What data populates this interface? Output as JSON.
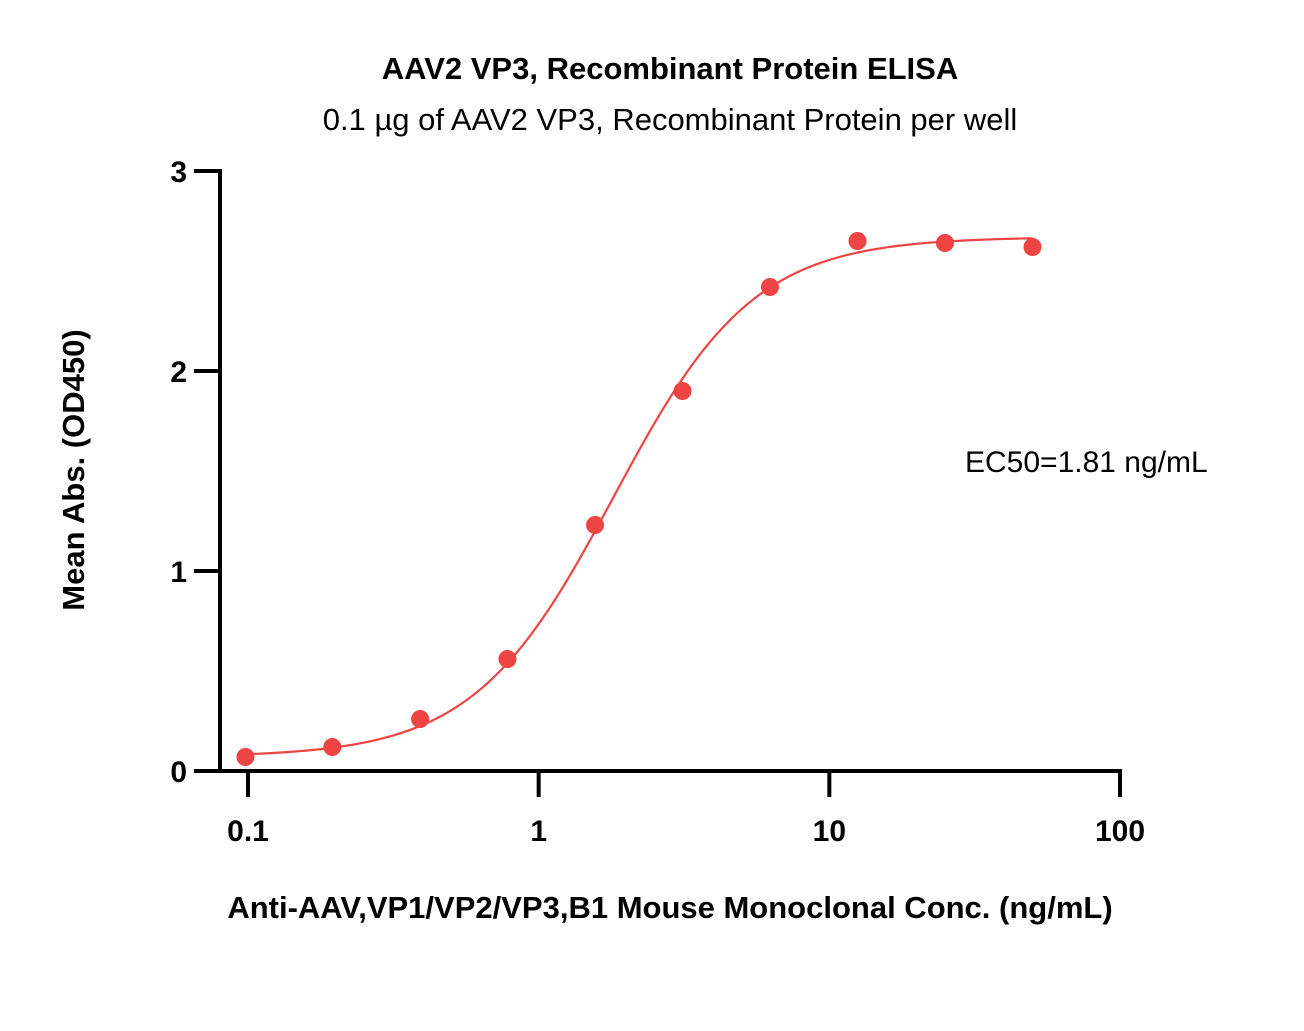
{
  "chart_data": {
    "type": "scatter",
    "title": "AAV2 VP3, Recombinant Protein ELISA",
    "subtitle": "0.1 µg of AAV2 VP3, Recombinant Protein per well",
    "xlabel": "Anti-AAV,VP1/VP2/VP3,B1 Mouse Monoclonal Conc. (ng/mL)",
    "ylabel": "Mean Abs. (OD450)",
    "x_scale": "log",
    "xlim": [
      0.1,
      100
    ],
    "ylim": [
      0,
      3
    ],
    "x_ticks": [
      0.1,
      1,
      10,
      100
    ],
    "x_tick_labels": [
      "0.1",
      "1",
      "10",
      "100"
    ],
    "y_ticks": [
      0,
      1,
      2,
      3
    ],
    "y_tick_labels": [
      "0",
      "1",
      "2",
      "3"
    ],
    "grid": false,
    "annotation": "EC50=1.81 ng/mL",
    "color": "#ef4444",
    "series": [
      {
        "x": [
          0.098,
          0.195,
          0.391,
          0.781,
          1.563,
          3.125,
          6.25,
          12.5,
          25,
          50
        ],
        "y": [
          0.07,
          0.12,
          0.26,
          0.56,
          1.23,
          1.9,
          2.42,
          2.65,
          2.64,
          2.62
        ]
      }
    ],
    "fit_curve": {
      "model": "4PL",
      "bottom": 0.07,
      "top": 2.67,
      "ec50": 1.81,
      "hill": 1.8
    }
  }
}
